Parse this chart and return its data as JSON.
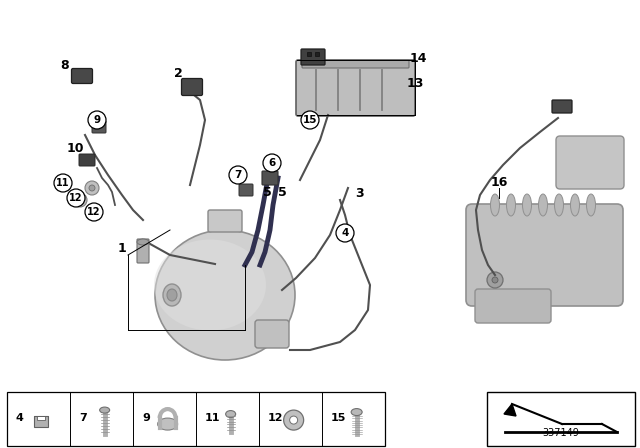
{
  "bg_color": "#ffffff",
  "diagram_number": "337149",
  "wire_color": "#505050",
  "dark_wire": "#303050",
  "part_gray": "#b0b0b0",
  "dark_gray": "#606060",
  "bracket_color": "#909090",
  "canister_color": "#c0c0c0",
  "canister_shadow": "#a0a0a0",
  "label_font": 8.5,
  "circle_font": 7.5
}
